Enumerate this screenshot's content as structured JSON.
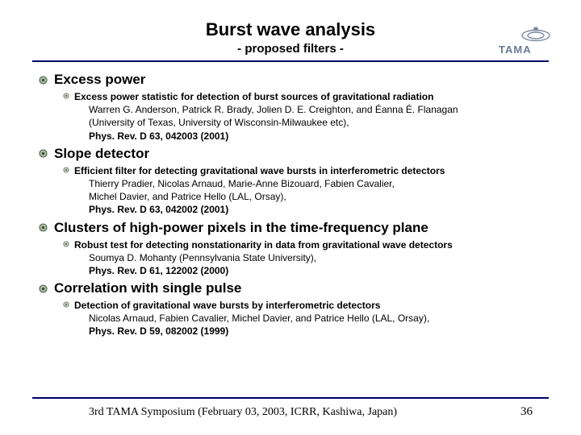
{
  "header": {
    "title": "Burst wave analysis",
    "subtitle": "- proposed filters -"
  },
  "colors": {
    "rule": "#000066",
    "bullet_outer_fill": "#a8b8a0",
    "bullet_outer_stroke": "#3a5a3a",
    "bullet_inner_fill": "#c8d0c0",
    "bullet_inner_stroke": "#5a6a5a",
    "logo_stroke": "#7a8aa0"
  },
  "sections": [
    {
      "title": "Excess power",
      "item": {
        "heading": "Excess power statistic for detection of burst sources of gravitational radiation",
        "lines": [
          "Warren G. Anderson, Patrick R. Brady, Jolien D. E. Creighton, and Éanna É. Flanagan",
          "(University of Texas,  University of Wisconsin-Milwaukee etc),"
        ],
        "ref": "Phys. Rev. D 63, 042003 (2001)"
      }
    },
    {
      "title": "Slope detector",
      "item": {
        "heading": "Efficient filter for detecting gravitational wave bursts in interferometric detectors",
        "lines": [
          "Thierry Pradier, Nicolas Arnaud, Marie-Anne Bizouard, Fabien Cavalier,",
          "Michel Davier, and Patrice Hello (LAL, Orsay),"
        ],
        "ref": "Phys. Rev. D 63, 042002 (2001)"
      }
    },
    {
      "title": "Clusters of high-power pixels in the time-frequency plane",
      "item": {
        "heading": "Robust test for detecting nonstationarity in data from gravitational wave detectors",
        "lines": [
          "Soumya D. Mohanty (Pennsylvania State University),"
        ],
        "ref": "Phys. Rev. D 61, 122002 (2000)"
      }
    },
    {
      "title": "Correlation with single pulse",
      "item": {
        "heading": "Detection of gravitational wave bursts by interferometric detectors",
        "lines": [
          "Nicolas Arnaud, Fabien Cavalier, Michel Davier, and Patrice Hello (LAL, Orsay),"
        ],
        "ref": "Phys. Rev. D 59, 082002 (1999)"
      }
    }
  ],
  "footer": {
    "text": "3rd TAMA Symposium (February 03, 2003, ICRR, Kashiwa, Japan)",
    "page": "36"
  }
}
